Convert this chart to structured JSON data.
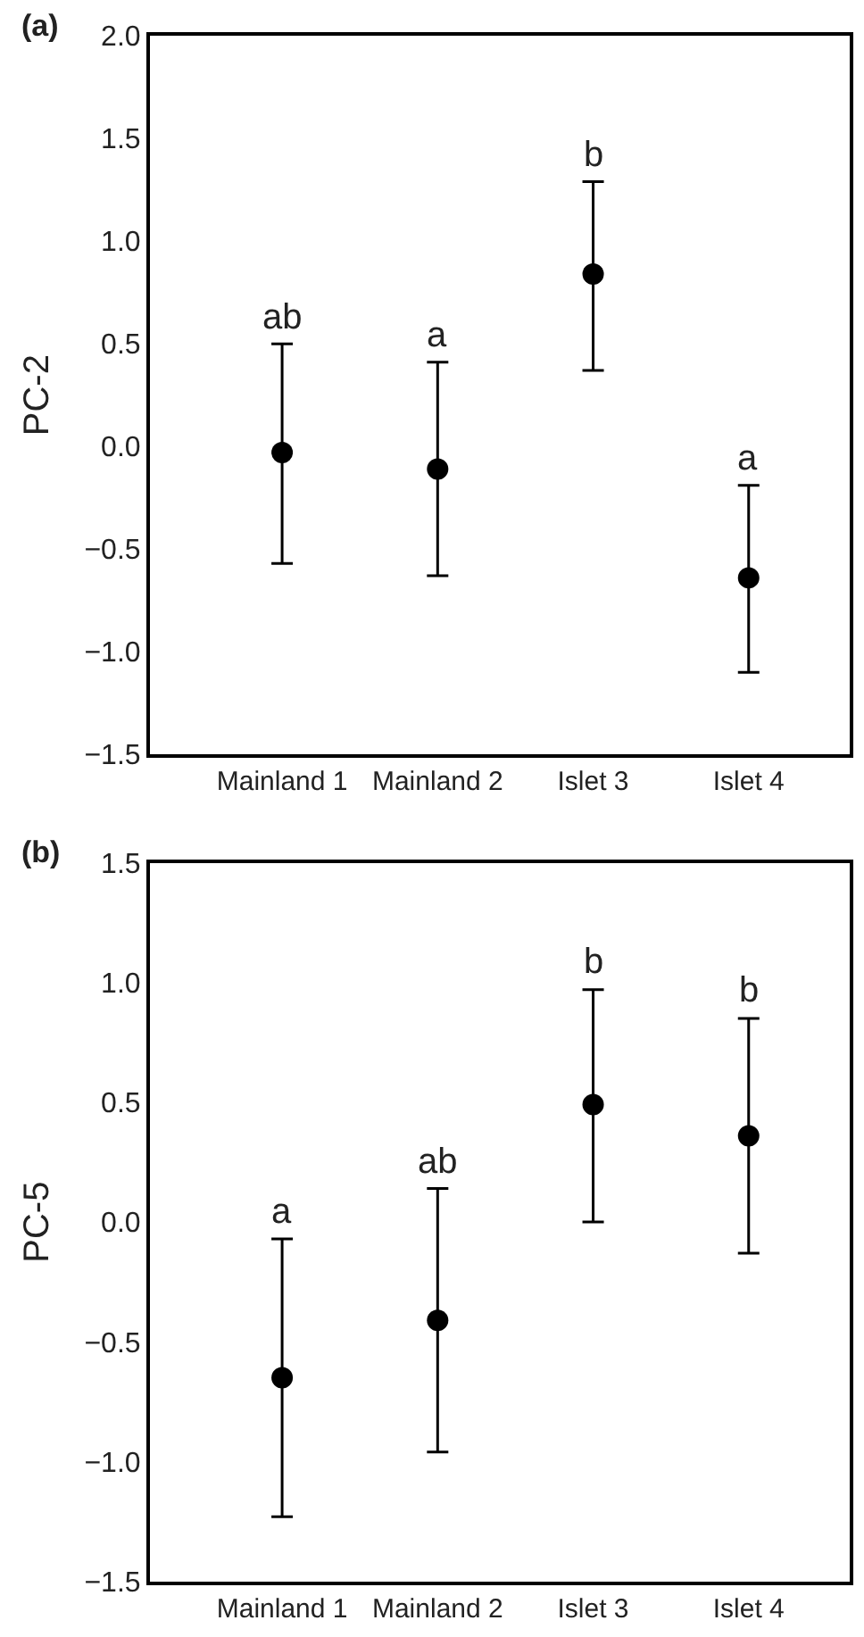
{
  "chart_data": [
    {
      "type": "scatter",
      "title": "(a)",
      "ylabel": "PC-2",
      "categories": [
        "Mainland 1",
        "Mainland 2",
        "Islet 3",
        "Islet 4"
      ],
      "series": [
        {
          "color": "#000000",
          "values": [
            -0.03,
            -0.11,
            0.84,
            -0.64
          ],
          "errors": [
            [
              -0.57,
              0.5
            ],
            [
              -0.63,
              0.41
            ],
            [
              0.37,
              1.29
            ],
            [
              -1.1,
              -0.19
            ]
          ]
        }
      ],
      "ylim": [
        -1.5,
        2.0
      ],
      "yticks": [
        {
          "value": -1.5,
          "label": "−1.5"
        },
        {
          "value": -1.0,
          "label": "−1.0"
        },
        {
          "value": -0.5,
          "label": "−0.5"
        },
        {
          "value": 0.0,
          "label": "0.0"
        },
        {
          "value": 0.5,
          "label": "0.5"
        },
        {
          "value": 1.0,
          "label": "1.0"
        },
        {
          "value": 1.5,
          "label": "1.5"
        },
        {
          "value": 2.0,
          "label": "2.0"
        }
      ],
      "annotations": [
        {
          "text": "ab",
          "x": "Mainland 1",
          "y": 0.5
        },
        {
          "text": "a",
          "x": "Mainland 2",
          "y": 0.41
        },
        {
          "text": "b",
          "x": "Islet 3",
          "y": 1.29
        },
        {
          "text": "a",
          "x": "Islet 4",
          "y": -0.19
        }
      ],
      "marker": "circle"
    },
    {
      "type": "scatter",
      "title": "(b)",
      "ylabel": "PC-5",
      "categories": [
        "Mainland 1",
        "Mainland 2",
        "Islet 3",
        "Islet 4"
      ],
      "series": [
        {
          "color": "#000000",
          "values": [
            -0.65,
            -0.41,
            0.49,
            0.36
          ],
          "errors": [
            [
              -1.23,
              -0.07
            ],
            [
              -0.96,
              0.14
            ],
            [
              0.0,
              0.97
            ],
            [
              -0.13,
              0.85
            ]
          ]
        }
      ],
      "ylim": [
        -1.5,
        1.5
      ],
      "yticks": [
        {
          "value": -1.5,
          "label": "−1.5"
        },
        {
          "value": -1.0,
          "label": "−1.0"
        },
        {
          "value": -0.5,
          "label": "−0.5"
        },
        {
          "value": 0.0,
          "label": "0.0"
        },
        {
          "value": 0.5,
          "label": "0.5"
        },
        {
          "value": 1.0,
          "label": "1.0"
        },
        {
          "value": 1.5,
          "label": "1.5"
        }
      ],
      "annotations": [
        {
          "text": "a",
          "x": "Mainland 1",
          "y": -0.07
        },
        {
          "text": "ab",
          "x": "Mainland 2",
          "y": 0.14
        },
        {
          "text": "b",
          "x": "Islet 3",
          "y": 0.97
        },
        {
          "text": "b",
          "x": "Islet 4",
          "y": 0.85
        }
      ],
      "marker": "circle"
    }
  ]
}
